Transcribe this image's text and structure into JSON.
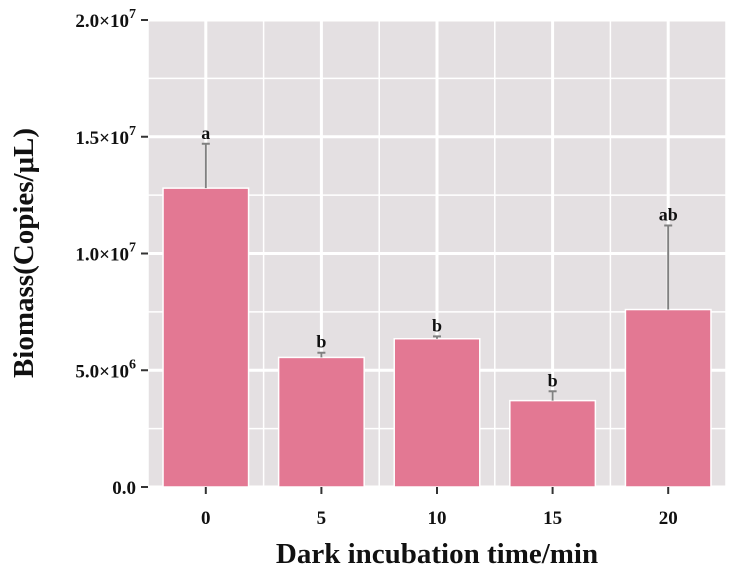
{
  "chart_data": {
    "type": "bar",
    "categories": [
      "0",
      "5",
      "10",
      "15",
      "20"
    ],
    "values": [
      12800000,
      5550000,
      6350000,
      3700000,
      7600000
    ],
    "error_upper": [
      14700000,
      5750000,
      6450000,
      4100000,
      11200000
    ],
    "significance": [
      "a",
      "b",
      "b",
      "b",
      "ab"
    ],
    "xlabel": "Dark incubation time/min",
    "ylabel": "Biomass(Copies/μL)",
    "ylim": [
      0,
      20000000
    ],
    "yticks": [
      0,
      5000000,
      10000000,
      15000000,
      20000000
    ],
    "ytick_labels": [
      {
        "mantissa": "0.0",
        "exponent": ""
      },
      {
        "mantissa": "5.0×10",
        "exponent": "6"
      },
      {
        "mantissa": "1.0×10",
        "exponent": "7"
      },
      {
        "mantissa": "1.5×10",
        "exponent": "7"
      },
      {
        "mantissa": "2.0×10",
        "exponent": "7"
      }
    ],
    "grid": true,
    "colors": {
      "bar": "#e37893",
      "panel": "#e4e0e2",
      "grid": "#ffffff",
      "error_bar": "#808080"
    }
  }
}
